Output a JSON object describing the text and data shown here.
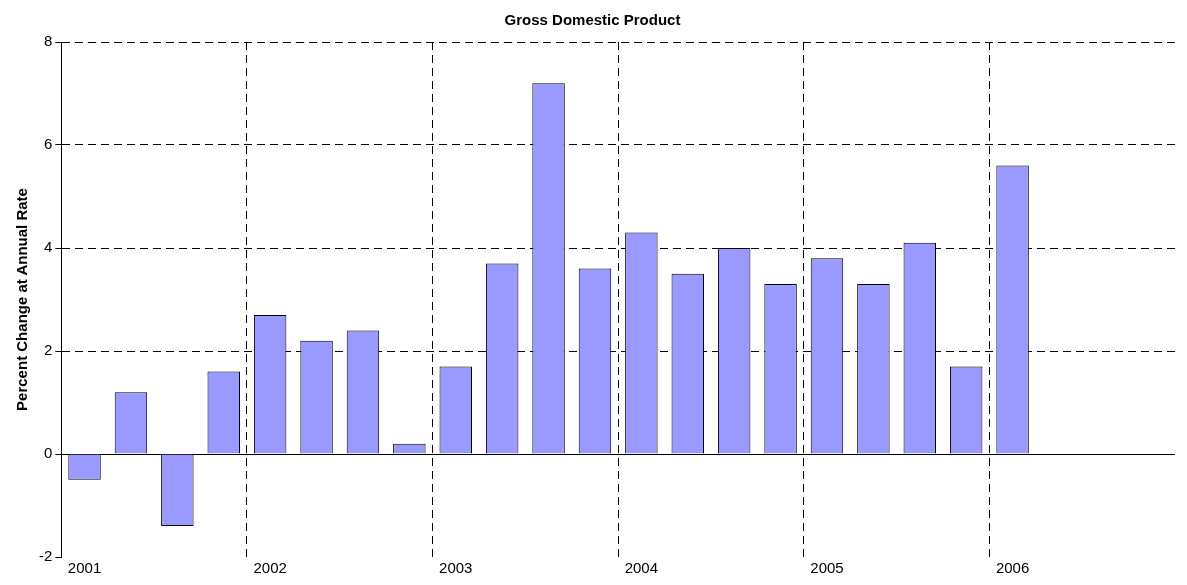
{
  "chart_data": {
    "type": "bar",
    "title": "Gross Domestic Product",
    "ylabel": "Percent Change at Annual Rate",
    "categories": [
      "2001",
      null,
      null,
      null,
      "2002",
      null,
      null,
      null,
      "2003",
      null,
      null,
      null,
      "2004",
      null,
      null,
      null,
      "2005",
      null,
      null,
      null,
      "2006",
      null,
      null,
      null
    ],
    "values": [
      -0.5,
      1.2,
      -1.4,
      1.6,
      2.7,
      2.2,
      2.4,
      0.2,
      1.7,
      3.7,
      7.2,
      3.6,
      4.3,
      3.5,
      4.0,
      3.3,
      3.8,
      3.3,
      4.1,
      1.7,
      5.6,
      null,
      null,
      null
    ],
    "color": "#9999ff",
    "ylim": [
      -2,
      8
    ],
    "yticks": [
      -2,
      0,
      2,
      4,
      6,
      8
    ],
    "grid": true,
    "legend": false
  }
}
